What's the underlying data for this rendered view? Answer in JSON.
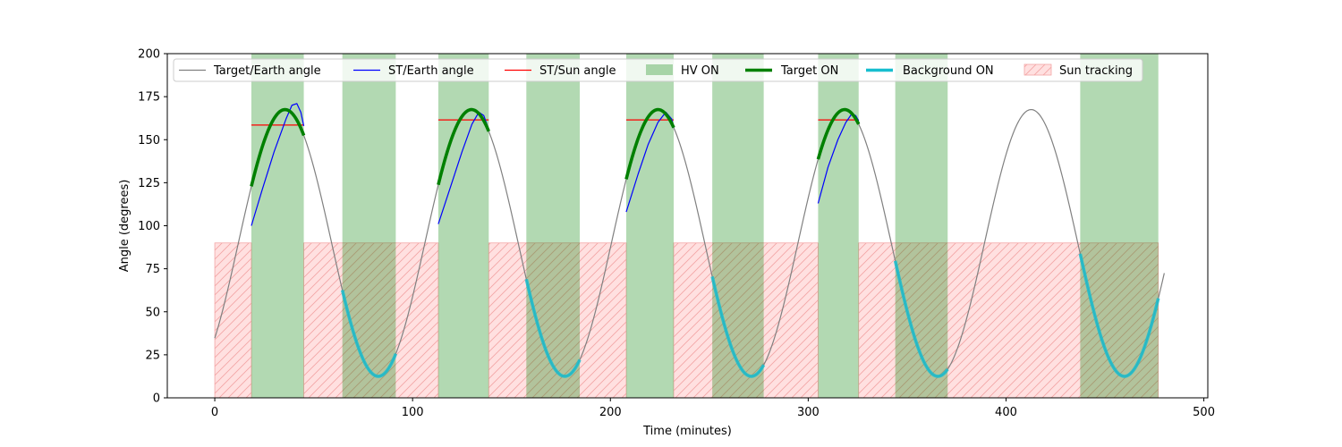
{
  "chart_data": {
    "type": "line",
    "xlabel": "Time (minutes)",
    "ylabel": "Angle (degrees)",
    "xlim": [
      -24,
      502
    ],
    "ylim": [
      0,
      200
    ],
    "xticks": [
      0,
      100,
      200,
      300,
      400,
      500
    ],
    "yticks": [
      0,
      25,
      50,
      75,
      100,
      125,
      150,
      175,
      200
    ],
    "grid": false,
    "legend_position": "top",
    "target_earth": {
      "period": 94.3,
      "mean": 90,
      "amplitude": 77.5,
      "peak_time": 35.5,
      "x_range": [
        0,
        480
      ]
    },
    "hv_on_intervals": [
      [
        18.5,
        45
      ],
      [
        64.5,
        91.5
      ],
      [
        113,
        138.5
      ],
      [
        157.5,
        184.5
      ],
      [
        208,
        232
      ],
      [
        251.5,
        277.5
      ],
      [
        305,
        325.5
      ],
      [
        344,
        370.5
      ],
      [
        437.5,
        477
      ]
    ],
    "target_on_intervals": [
      [
        18.5,
        45
      ],
      [
        113,
        138.5
      ],
      [
        208,
        232
      ],
      [
        305,
        325.5
      ]
    ],
    "background_on_intervals": [
      [
        64.5,
        91.5
      ],
      [
        157.5,
        184.5
      ],
      [
        251.5,
        277.5
      ],
      [
        344,
        370.5
      ],
      [
        437.5,
        477
      ]
    ],
    "sun_tracking": {
      "y_range": [
        0,
        90
      ],
      "intervals": [
        [
          0,
          18.5
        ],
        [
          45,
          113
        ],
        [
          138.5,
          208
        ],
        [
          232,
          305
        ],
        [
          325.5,
          477
        ]
      ]
    },
    "st_earth": [
      {
        "x": [
          18.5,
          24,
          30,
          36,
          39,
          41.5,
          43.5,
          45
        ],
        "y": [
          100,
          121,
          143,
          162,
          170,
          171,
          166,
          158
        ]
      },
      {
        "x": [
          113,
          119,
          125,
          130,
          133.5,
          136,
          138.5
        ],
        "y": [
          101,
          122,
          143,
          159,
          166,
          164,
          156
        ]
      },
      {
        "x": [
          208,
          214,
          219,
          224,
          228,
          231,
          232
        ],
        "y": [
          108,
          130,
          147,
          160,
          166,
          162,
          157
        ]
      },
      {
        "x": [
          305,
          310,
          315,
          319,
          322,
          324,
          325.5
        ],
        "y": [
          113,
          134,
          150,
          160,
          165,
          164,
          161
        ]
      }
    ],
    "st_sun": [
      {
        "x": [
          18.5,
          45
        ],
        "y": [
          158.5,
          158.5
        ]
      },
      {
        "x": [
          113,
          138.5
        ],
        "y": [
          161.5,
          161.5
        ]
      },
      {
        "x": [
          208,
          232
        ],
        "y": [
          161.5,
          161.5
        ]
      },
      {
        "x": [
          305,
          325.5
        ],
        "y": [
          161.5,
          161.5
        ]
      }
    ],
    "series": [
      {
        "name": "Target/Earth angle",
        "color": "#808080",
        "style": "line"
      },
      {
        "name": "ST/Earth angle",
        "color": "#0000ff",
        "style": "line"
      },
      {
        "name": "ST/Sun angle",
        "color": "#ff0000",
        "style": "line"
      },
      {
        "name": "HV ON",
        "color": "#008000",
        "style": "patch"
      },
      {
        "name": "Target ON",
        "color": "#008000",
        "style": "thick-line"
      },
      {
        "name": "Background ON",
        "color": "#17becf",
        "style": "thick-line"
      },
      {
        "name": "Sun tracking",
        "color": "#ffc0cb",
        "style": "hatched-patch"
      }
    ]
  }
}
